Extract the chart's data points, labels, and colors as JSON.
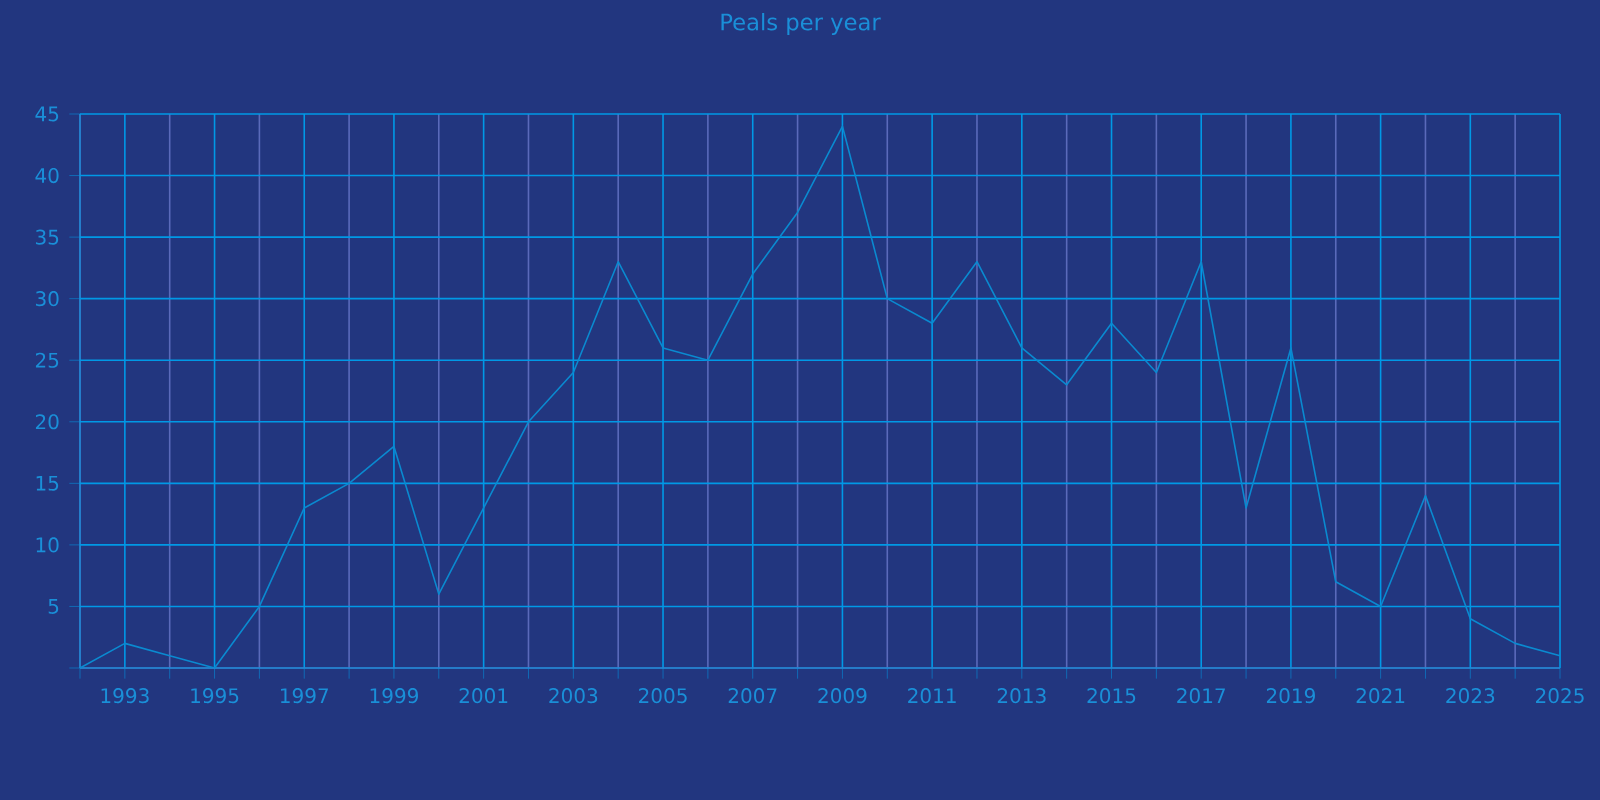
{
  "chart_data": {
    "type": "line",
    "title": "Peals per year",
    "x": [
      1992,
      1993,
      1994,
      1995,
      1996,
      1997,
      1998,
      1999,
      2000,
      2001,
      2002,
      2003,
      2004,
      2005,
      2006,
      2007,
      2008,
      2009,
      2010,
      2011,
      2012,
      2013,
      2014,
      2015,
      2016,
      2017,
      2018,
      2019,
      2020,
      2021,
      2022,
      2023,
      2024,
      2025
    ],
    "series": [
      {
        "color": "#0a8ad0",
        "values": [
          0,
          2,
          1,
          0,
          5,
          13,
          15,
          18,
          6,
          13,
          20,
          24,
          33,
          26,
          25,
          32,
          37,
          44,
          30,
          28,
          33,
          26,
          23,
          28,
          24,
          33,
          13,
          26,
          7,
          5,
          14,
          4,
          2,
          1
        ]
      }
    ],
    "xlim": [
      1992,
      2025
    ],
    "xticks": [
      {
        "value": 1992,
        "label": null
      },
      1993,
      {
        "value": 1994,
        "label": null
      },
      1995,
      {
        "value": 1996,
        "label": null
      },
      1997,
      {
        "value": 1998,
        "label": null
      },
      1999,
      {
        "value": 2000,
        "label": null
      },
      2001,
      {
        "value": 2002,
        "label": null
      },
      2003,
      {
        "value": 2004,
        "label": null
      },
      2005,
      {
        "value": 2006,
        "label": null
      },
      2007,
      {
        "value": 2008,
        "label": null
      },
      2009,
      {
        "value": 2010,
        "label": null
      },
      2011,
      {
        "value": 2012,
        "label": null
      },
      2013,
      {
        "value": 2014,
        "label": null
      },
      2015,
      {
        "value": 2016,
        "label": null
      },
      2017,
      {
        "value": 2018,
        "label": null
      },
      2019,
      {
        "value": 2020,
        "label": null
      },
      2021,
      {
        "value": 2022,
        "label": null
      },
      2023,
      {
        "value": 2024,
        "label": null
      },
      2025
    ],
    "ylim": [
      0,
      45
    ],
    "yticks": [
      {
        "value": 0,
        "label": null
      },
      5,
      10,
      15,
      20,
      25,
      30,
      35,
      40,
      45
    ],
    "grid": true,
    "marker": "none",
    "line_style": "solid"
  }
}
